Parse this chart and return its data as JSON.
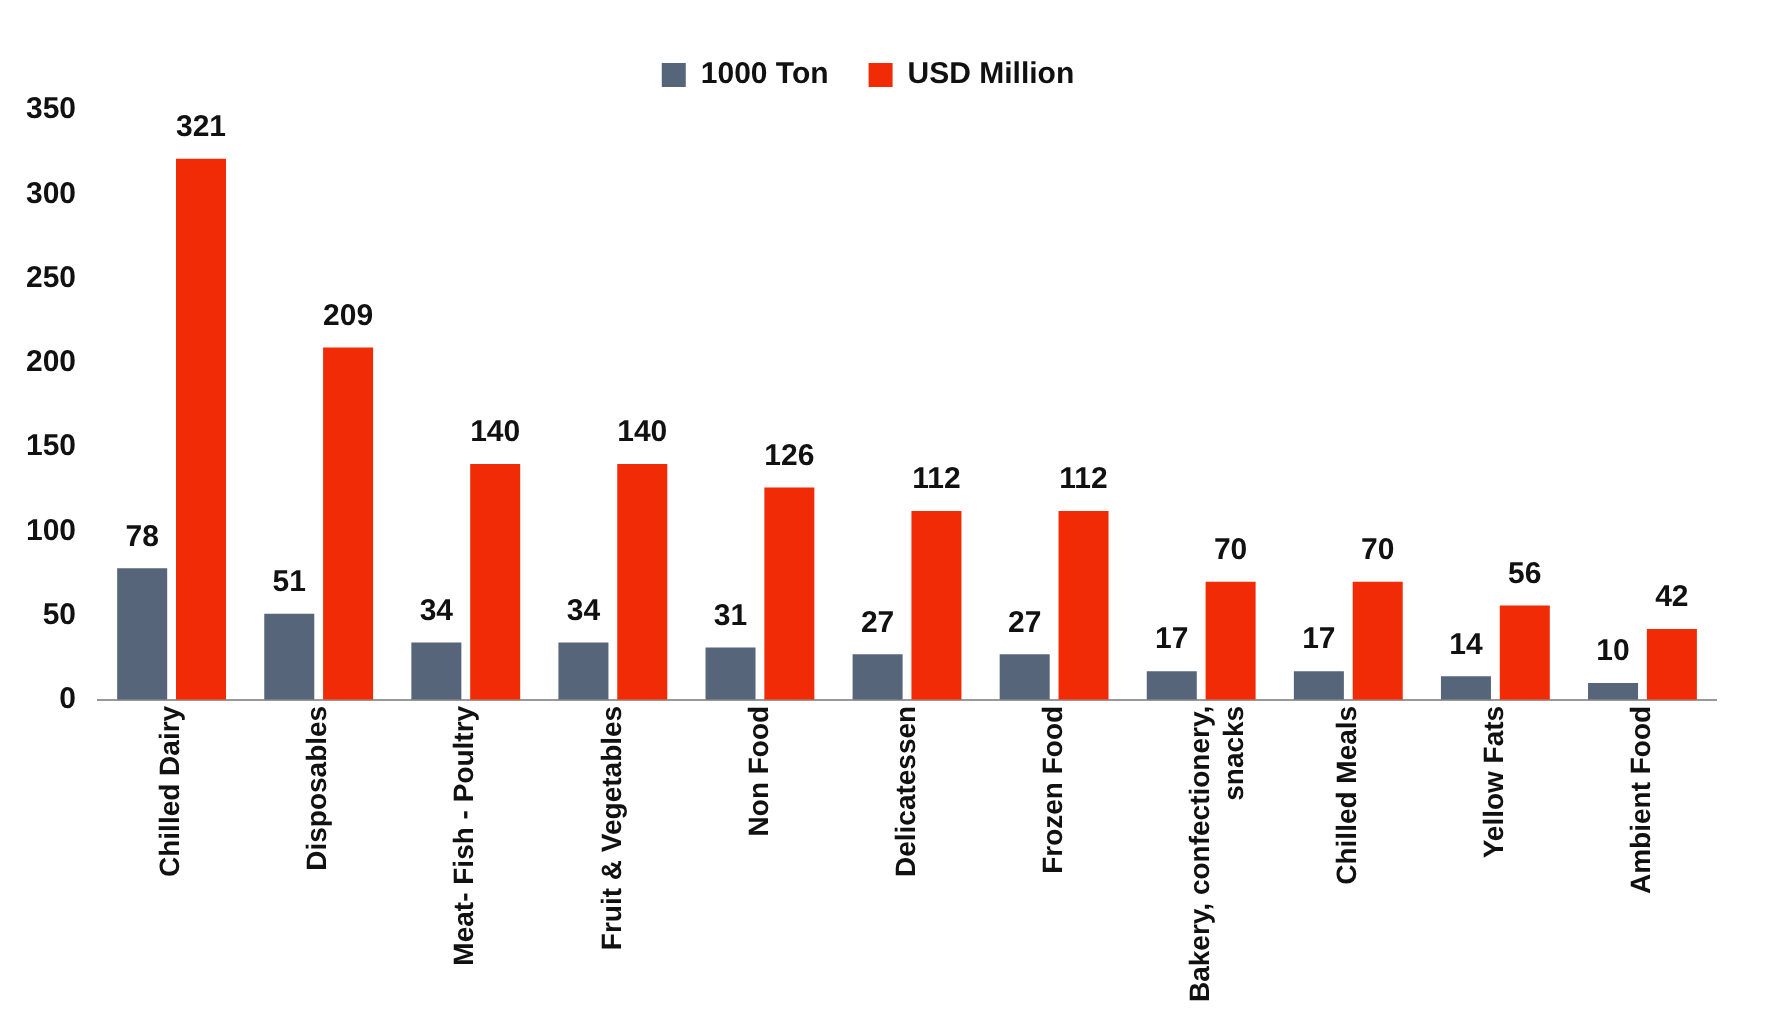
{
  "chart_data": {
    "type": "bar",
    "categories": [
      "Chilled Dairy",
      "Disposables",
      "Meat- Fish - Poultry",
      "Fruit & Vegetables",
      "Non Food",
      "Delicatessen",
      "Frozen Food",
      "Bakery, confectionery, snacks",
      "Chilled Meals",
      "Yellow Fats",
      "Ambient Food"
    ],
    "series": [
      {
        "name": "1000 Ton",
        "color": "#56657a",
        "values": [
          78,
          51,
          34,
          34,
          31,
          27,
          27,
          17,
          17,
          14,
          10
        ]
      },
      {
        "name": "USD Million",
        "color": "#f02b05",
        "values": [
          321,
          209,
          140,
          140,
          126,
          112,
          112,
          70,
          70,
          56,
          42
        ]
      }
    ],
    "ylim": [
      0,
      350
    ],
    "yticks": [
      0,
      50,
      100,
      150,
      200,
      250,
      300,
      350
    ],
    "grid": false,
    "legend": "top",
    "data_labels": true
  }
}
